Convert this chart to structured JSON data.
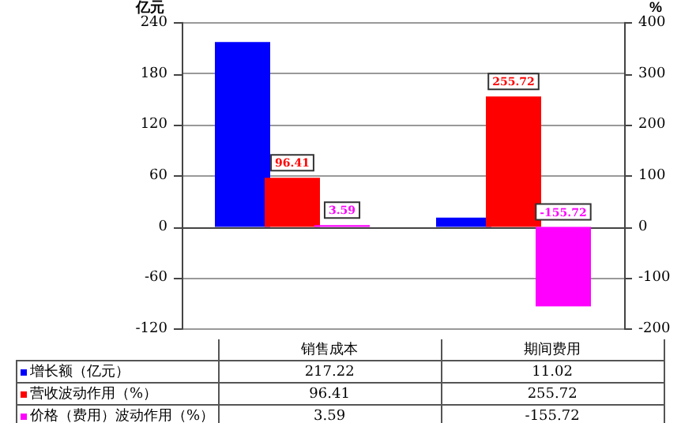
{
  "chart_data": {
    "type": "bar",
    "categories": [
      "销售成本",
      "期间费用"
    ],
    "ylabel": "亿元",
    "y2label": "%",
    "series": [
      {
        "name": "增长额（亿元）",
        "color": "#0000ff",
        "values": [
          217.22,
          11.02
        ]
      },
      {
        "name": "营收波动作用（%）",
        "color": "#ff0000",
        "values": [
          96.41,
          255.72
        ],
        "axis": "y2"
      },
      {
        "name": "价格（费用）波动作用（%）",
        "color": "#ff00ff",
        "values": [
          3.59,
          -155.72
        ],
        "axis": "y2"
      }
    ],
    "annotations": [
      "96.41",
      "255.72",
      "3.59",
      "-155.72"
    ],
    "ylim": [
      -120,
      240
    ],
    "yticks": [
      -120,
      -60,
      0,
      60,
      120,
      180,
      240
    ],
    "y2lim": [
      -200,
      400
    ],
    "y2ticks": [
      -200,
      -100,
      0,
      100,
      200,
      300,
      400
    ],
    "grid": "y",
    "data_labels": true,
    "legend": "bottom"
  }
}
